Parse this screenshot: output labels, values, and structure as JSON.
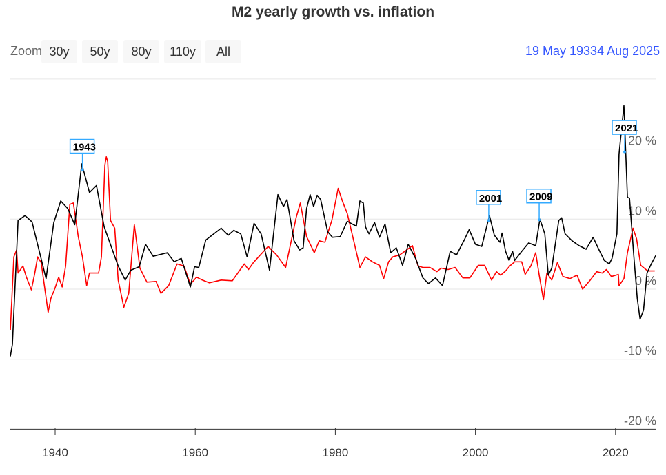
{
  "chart_data": {
    "type": "line",
    "title": "M2 yearly growth vs. inflation",
    "xlabel": "",
    "ylabel": "",
    "xlim": [
      1933.6,
      2025.8
    ],
    "ylim": [
      -20,
      30
    ],
    "grid": true,
    "x_ticks": [
      "1940",
      "1960",
      "1980",
      "2000",
      "2020"
    ],
    "y_ticks": [
      {
        "v": 20,
        "label": "20 %"
      },
      {
        "v": 10,
        "label": "10 %"
      },
      {
        "v": 0,
        "label": "0 %"
      },
      {
        "v": -10,
        "label": "-10 %"
      },
      {
        "v": -20,
        "label": "-20 %"
      }
    ],
    "series": [
      {
        "name": "M2 yearly growth",
        "color": "#000000",
        "points": [
          [
            1933.6,
            -9.6
          ],
          [
            1933.9,
            -7.9
          ],
          [
            1934.7,
            9.8
          ],
          [
            1935.7,
            10.5
          ],
          [
            1936.7,
            9.6
          ],
          [
            1938.7,
            1.5
          ],
          [
            1939.8,
            9.5
          ],
          [
            1940.8,
            12.6
          ],
          [
            1941.8,
            11.5
          ],
          [
            1942.8,
            9.2
          ],
          [
            1943.8,
            17.9
          ],
          [
            1944.9,
            13.8
          ],
          [
            1945.9,
            14.8
          ],
          [
            1947,
            8.9
          ],
          [
            1949,
            3.3
          ],
          [
            1950,
            1.3
          ],
          [
            1950.8,
            2.7
          ],
          [
            1952,
            3.2
          ],
          [
            1952.9,
            6.4
          ],
          [
            1954,
            4.7
          ],
          [
            1956,
            5.2
          ],
          [
            1957,
            3.9
          ],
          [
            1958,
            4.4
          ],
          [
            1959.3,
            0.3
          ],
          [
            1959.9,
            3.2
          ],
          [
            1960.5,
            3.1
          ],
          [
            1961.5,
            7.0
          ],
          [
            1963.7,
            8.7
          ],
          [
            1964.7,
            7.7
          ],
          [
            1965.5,
            8.4
          ],
          [
            1966.5,
            7.9
          ],
          [
            1967.4,
            4.6
          ],
          [
            1968.4,
            9.4
          ],
          [
            1969.4,
            7.9
          ],
          [
            1970.6,
            2.7
          ],
          [
            1971.8,
            13.5
          ],
          [
            1972.6,
            11.8
          ],
          [
            1973.1,
            12.8
          ],
          [
            1974.1,
            6.9
          ],
          [
            1974.9,
            5.6
          ],
          [
            1975.4,
            5.9
          ],
          [
            1975.9,
            11.5
          ],
          [
            1976.4,
            13.5
          ],
          [
            1976.9,
            11.8
          ],
          [
            1977.4,
            13.4
          ],
          [
            1977.9,
            12.8
          ],
          [
            1978.9,
            8.2
          ],
          [
            1979.6,
            7.4
          ],
          [
            1980.7,
            7.5
          ],
          [
            1981.7,
            9.7
          ],
          [
            1982.4,
            9.3
          ],
          [
            1983,
            9.0
          ],
          [
            1983.5,
            12.6
          ],
          [
            1984,
            12.3
          ],
          [
            1984.3,
            8.9
          ],
          [
            1984.8,
            7.9
          ],
          [
            1985.6,
            9.5
          ],
          [
            1986.3,
            7.4
          ],
          [
            1987.1,
            9.3
          ],
          [
            1987.9,
            5.2
          ],
          [
            1988.7,
            5.9
          ],
          [
            1989.6,
            3.4
          ],
          [
            1990.4,
            6.4
          ],
          [
            1991.5,
            4.3
          ],
          [
            1992.5,
            1.6
          ],
          [
            1993.3,
            0.8
          ],
          [
            1994.3,
            1.6
          ],
          [
            1995.3,
            0.5
          ],
          [
            1996.4,
            5.4
          ],
          [
            1997.3,
            4.9
          ],
          [
            1998.4,
            7.0
          ],
          [
            1999.1,
            8.5
          ],
          [
            2000,
            6.4
          ],
          [
            2000.9,
            6.1
          ],
          [
            2002,
            10.5
          ],
          [
            2002.7,
            7.7
          ],
          [
            2003.5,
            6.7
          ],
          [
            2003.8,
            8.0
          ],
          [
            2004.3,
            5.4
          ],
          [
            2004.8,
            4.1
          ],
          [
            2005.3,
            5.4
          ],
          [
            2005.6,
            4.1
          ],
          [
            2006.6,
            5.4
          ],
          [
            2007.6,
            6.6
          ],
          [
            2008.6,
            6.2
          ],
          [
            2009.2,
            10.0
          ],
          [
            2009.9,
            7.9
          ],
          [
            2010.4,
            2.0
          ],
          [
            2010.9,
            3.0
          ],
          [
            2011.9,
            9.8
          ],
          [
            2012.3,
            10.2
          ],
          [
            2012.8,
            7.9
          ],
          [
            2013.8,
            6.9
          ],
          [
            2014.8,
            6.2
          ],
          [
            2015.8,
            5.7
          ],
          [
            2016.8,
            7.4
          ],
          [
            2017.6,
            5.7
          ],
          [
            2018.4,
            4.1
          ],
          [
            2019.1,
            3.6
          ],
          [
            2019.5,
            4.4
          ],
          [
            2020.2,
            7.9
          ],
          [
            2020.5,
            19.3
          ],
          [
            2021.2,
            26.2
          ],
          [
            2021.7,
            13.1
          ],
          [
            2022,
            13.0
          ],
          [
            2022.6,
            4.9
          ],
          [
            2023.1,
            -1.3
          ],
          [
            2023.5,
            -4.3
          ],
          [
            2024,
            -3.0
          ],
          [
            2024.5,
            2.3
          ],
          [
            2025.1,
            3.6
          ],
          [
            2025.8,
            4.9
          ]
        ]
      },
      {
        "name": "Inflation",
        "color": "#ff0000",
        "points": [
          [
            1933.6,
            -5.9
          ],
          [
            1934.1,
            4.6
          ],
          [
            1934.5,
            5.6
          ],
          [
            1934.7,
            2.3
          ],
          [
            1935.4,
            3.3
          ],
          [
            1935.9,
            1.7
          ],
          [
            1936.6,
            -0.1
          ],
          [
            1937.1,
            2.3
          ],
          [
            1937.5,
            4.6
          ],
          [
            1938,
            3.8
          ],
          [
            1939,
            -3.3
          ],
          [
            1939.4,
            -1.3
          ],
          [
            1940,
            0.2
          ],
          [
            1940.5,
            1.7
          ],
          [
            1941,
            0.3
          ],
          [
            1941.5,
            3.3
          ],
          [
            1942.1,
            12.1
          ],
          [
            1942.6,
            12.3
          ],
          [
            1943.3,
            7.5
          ],
          [
            1943.9,
            4.6
          ],
          [
            1944.5,
            0.5
          ],
          [
            1944.9,
            2.3
          ],
          [
            1946.2,
            2.3
          ],
          [
            1946.6,
            4.6
          ],
          [
            1947.1,
            17.7
          ],
          [
            1947.3,
            18.9
          ],
          [
            1947.5,
            18.2
          ],
          [
            1947.9,
            9.8
          ],
          [
            1948.5,
            8.7
          ],
          [
            1949,
            1.3
          ],
          [
            1949.8,
            -2.6
          ],
          [
            1950.5,
            -0.6
          ],
          [
            1951.3,
            9.2
          ],
          [
            1951.6,
            6.9
          ],
          [
            1952.1,
            3.0
          ],
          [
            1953.1,
            1.0
          ],
          [
            1954.4,
            1.1
          ],
          [
            1955.1,
            -0.6
          ],
          [
            1956.2,
            0.5
          ],
          [
            1957.4,
            3.6
          ],
          [
            1958.4,
            3.3
          ],
          [
            1959.3,
            0.7
          ],
          [
            1960.2,
            1.7
          ],
          [
            1961,
            1.3
          ],
          [
            1962,
            0.9
          ],
          [
            1963.7,
            1.3
          ],
          [
            1965.3,
            1.2
          ],
          [
            1967,
            3.6
          ],
          [
            1967.6,
            2.8
          ],
          [
            1968.3,
            3.8
          ],
          [
            1969.3,
            4.9
          ],
          [
            1970.4,
            6.1
          ],
          [
            1971.6,
            4.9
          ],
          [
            1972.9,
            3.1
          ],
          [
            1974.4,
            10.2
          ],
          [
            1975,
            12.3
          ],
          [
            1975.9,
            7.5
          ],
          [
            1977,
            5.2
          ],
          [
            1977.7,
            6.9
          ],
          [
            1978.5,
            6.7
          ],
          [
            1979.5,
            9.8
          ],
          [
            1980.4,
            14.4
          ],
          [
            1981,
            12.6
          ],
          [
            1981.7,
            10.8
          ],
          [
            1982.7,
            6.6
          ],
          [
            1983.5,
            3.1
          ],
          [
            1984.3,
            4.6
          ],
          [
            1985.3,
            3.9
          ],
          [
            1986.3,
            3.4
          ],
          [
            1986.9,
            1.5
          ],
          [
            1987.6,
            3.9
          ],
          [
            1988.2,
            4.6
          ],
          [
            1989.2,
            4.9
          ],
          [
            1990.2,
            5.6
          ],
          [
            1991,
            6.2
          ],
          [
            1991.8,
            3.3
          ],
          [
            1992.5,
            3.1
          ],
          [
            1993.5,
            3.1
          ],
          [
            1994.5,
            2.5
          ],
          [
            1995.1,
            3.0
          ],
          [
            1996.1,
            2.8
          ],
          [
            1997.1,
            3.1
          ],
          [
            1998.2,
            1.6
          ],
          [
            1999.2,
            1.6
          ],
          [
            2000.4,
            3.4
          ],
          [
            2001.3,
            3.4
          ],
          [
            2002.3,
            1.3
          ],
          [
            2003,
            2.5
          ],
          [
            2003.6,
            2.0
          ],
          [
            2004.3,
            2.6
          ],
          [
            2004.9,
            3.3
          ],
          [
            2005.6,
            3.9
          ],
          [
            2006.6,
            3.9
          ],
          [
            2007.1,
            2.1
          ],
          [
            2007.9,
            3.3
          ],
          [
            2008.6,
            5.2
          ],
          [
            2009.1,
            2.0
          ],
          [
            2009.7,
            -1.5
          ],
          [
            2010.2,
            2.3
          ],
          [
            2010.9,
            1.3
          ],
          [
            2011.7,
            3.8
          ],
          [
            2012.5,
            1.8
          ],
          [
            2013.5,
            1.5
          ],
          [
            2014.5,
            2.0
          ],
          [
            2015.3,
            0.0
          ],
          [
            2016.4,
            1.3
          ],
          [
            2017.3,
            2.5
          ],
          [
            2018.1,
            2.3
          ],
          [
            2018.7,
            2.8
          ],
          [
            2019.4,
            1.8
          ],
          [
            2020.4,
            2.1
          ],
          [
            2020.5,
            0.5
          ],
          [
            2021.2,
            1.5
          ],
          [
            2021.7,
            5.2
          ],
          [
            2022.5,
            8.7
          ],
          [
            2023,
            7.2
          ],
          [
            2023.6,
            3.4
          ],
          [
            2024.6,
            2.6
          ],
          [
            2025.6,
            2.6
          ]
        ]
      }
    ],
    "annotations": [
      {
        "label": "1943",
        "x": 1943.9,
        "y": 17.0,
        "box_y": 20.4
      },
      {
        "label": "2001",
        "x": 2001.9,
        "y": 9.8,
        "box_y": 13.1
      },
      {
        "label": "2009",
        "x": 2009.1,
        "y": 9.9,
        "box_y": 13.3
      },
      {
        "label": "2021",
        "x": 2021.3,
        "y": 19.6,
        "box_y": 23.1
      }
    ]
  },
  "controls": {
    "zoom_label": "Zoom",
    "zoom_buttons": [
      "30y",
      "50y",
      "80y",
      "110y",
      "All"
    ],
    "range_text": "19 May 19334 Aug 2025"
  },
  "colors": {
    "accent": "#3355ff",
    "flag": "#33aaff",
    "grid": "#e6e6e6"
  }
}
